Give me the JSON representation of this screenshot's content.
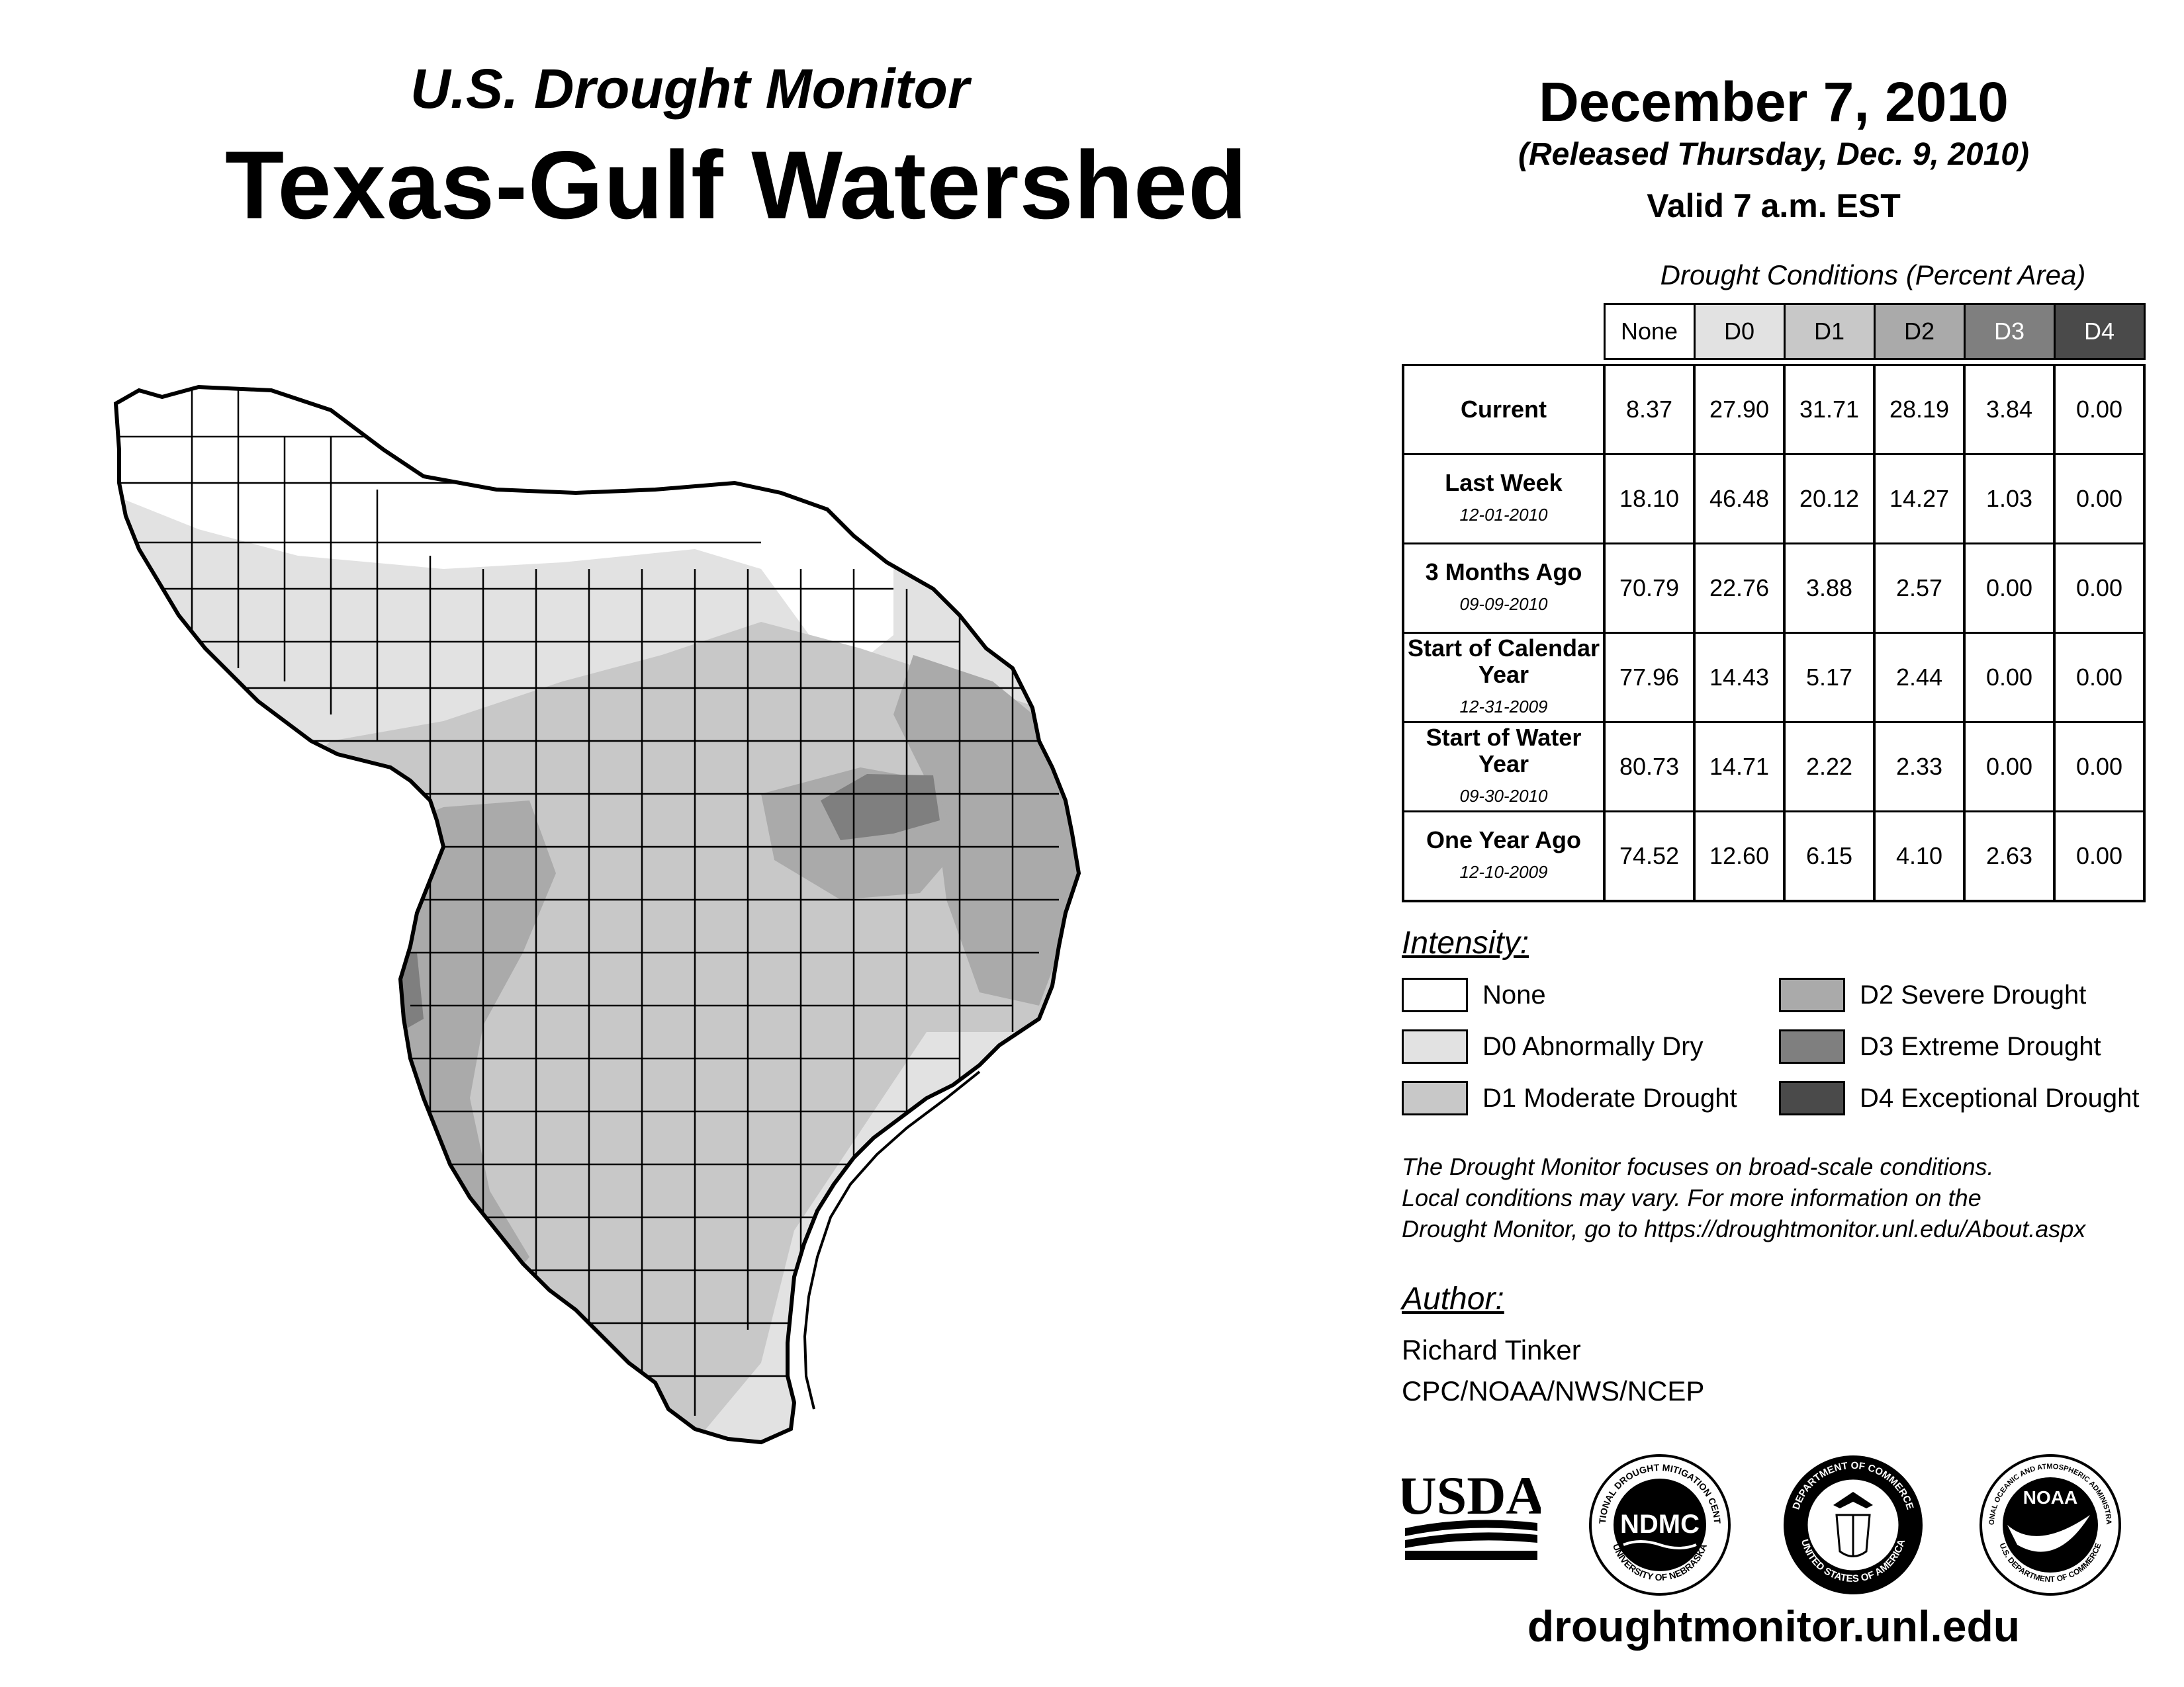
{
  "header": {
    "subtitle": "U.S. Drought Monitor",
    "title": "Texas-Gulf Watershed"
  },
  "date_block": {
    "date": "December 7, 2010",
    "released": "(Released Thursday, Dec. 9, 2010)",
    "valid": "Valid 7 a.m. EST"
  },
  "conditions": {
    "title": "Drought Conditions (Percent Area)",
    "columns": [
      "None",
      "D0",
      "D1",
      "D2",
      "D3",
      "D4"
    ],
    "rows": [
      {
        "label": "Current",
        "sub": "",
        "values": [
          "8.37",
          "27.90",
          "31.71",
          "28.19",
          "3.84",
          "0.00"
        ]
      },
      {
        "label": "Last Week",
        "sub": "12-01-2010",
        "values": [
          "18.10",
          "46.48",
          "20.12",
          "14.27",
          "1.03",
          "0.00"
        ]
      },
      {
        "label": "3 Months Ago",
        "sub": "09-09-2010",
        "values": [
          "70.79",
          "22.76",
          "3.88",
          "2.57",
          "0.00",
          "0.00"
        ]
      },
      {
        "label": "Start of Calendar Year",
        "sub": "12-31-2009",
        "values": [
          "77.96",
          "14.43",
          "5.17",
          "2.44",
          "0.00",
          "0.00"
        ]
      },
      {
        "label": "Start of Water Year",
        "sub": "09-30-2010",
        "values": [
          "80.73",
          "14.71",
          "2.22",
          "2.33",
          "0.00",
          "0.00"
        ]
      },
      {
        "label": "One Year Ago",
        "sub": "12-10-2009",
        "values": [
          "74.52",
          "12.60",
          "6.15",
          "4.10",
          "2.63",
          "0.00"
        ]
      }
    ]
  },
  "legend": {
    "title": "Intensity:",
    "items": [
      {
        "label": "None",
        "color": "#ffffff"
      },
      {
        "label": "D0 Abnormally Dry",
        "color": "#e2e2e2"
      },
      {
        "label": "D1 Moderate Drought",
        "color": "#c8c8c8"
      },
      {
        "label": "D2 Severe Drought",
        "color": "#aaaaaa"
      },
      {
        "label": "D3 Extreme Drought",
        "color": "#7f7f7f"
      },
      {
        "label": "D4 Exceptional Drought",
        "color": "#4a4a4a"
      }
    ]
  },
  "note": {
    "line1": "The Drought Monitor focuses on broad-scale conditions.",
    "line2": "Local conditions may vary. For more information on the",
    "line3": "Drought Monitor, go to https://droughtmonitor.unl.edu/About.aspx"
  },
  "author": {
    "title": "Author:",
    "name": "Richard Tinker",
    "org": "CPC/NOAA/NWS/NCEP"
  },
  "logos": {
    "usda": "USDA",
    "ndmc": "NDMC",
    "ndmc_ring_top": "NATIONAL DROUGHT MITIGATION CENTER",
    "ndmc_ring_bottom": "UNIVERSITY OF NEBRASKA",
    "doc_ring_top": "DEPARTMENT OF COMMERCE",
    "doc_ring_bottom": "UNITED STATES OF AMERICA",
    "noaa": "NOAA",
    "noaa_ring_top": "NATIONAL OCEANIC AND ATMOSPHERIC ADMINISTRATION",
    "noaa_ring_bottom": "U.S. DEPARTMENT OF COMMERCE"
  },
  "footer": {
    "url": "droughtmonitor.unl.edu"
  }
}
